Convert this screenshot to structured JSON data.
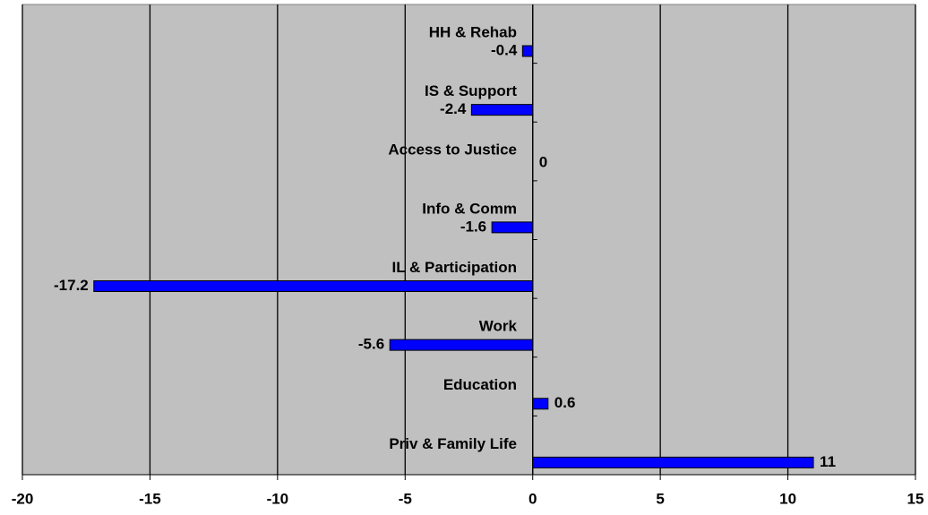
{
  "chart_data": {
    "type": "barh",
    "categories": [
      "HH & Rehab",
      "IS & Support",
      "Access to Justice",
      "Info & Comm",
      "IL & Participation",
      "Work",
      "Education",
      "Priv & Family Life"
    ],
    "values": [
      -0.4,
      -2.4,
      0,
      -1.6,
      -17.2,
      -5.6,
      0.6,
      11
    ],
    "color": "#0000ff",
    "xlim": [
      -20,
      15
    ],
    "xticks": [
      -20,
      -15,
      -10,
      -5,
      0,
      5,
      10,
      15
    ],
    "grid": true,
    "background": "#c0c0c0"
  }
}
